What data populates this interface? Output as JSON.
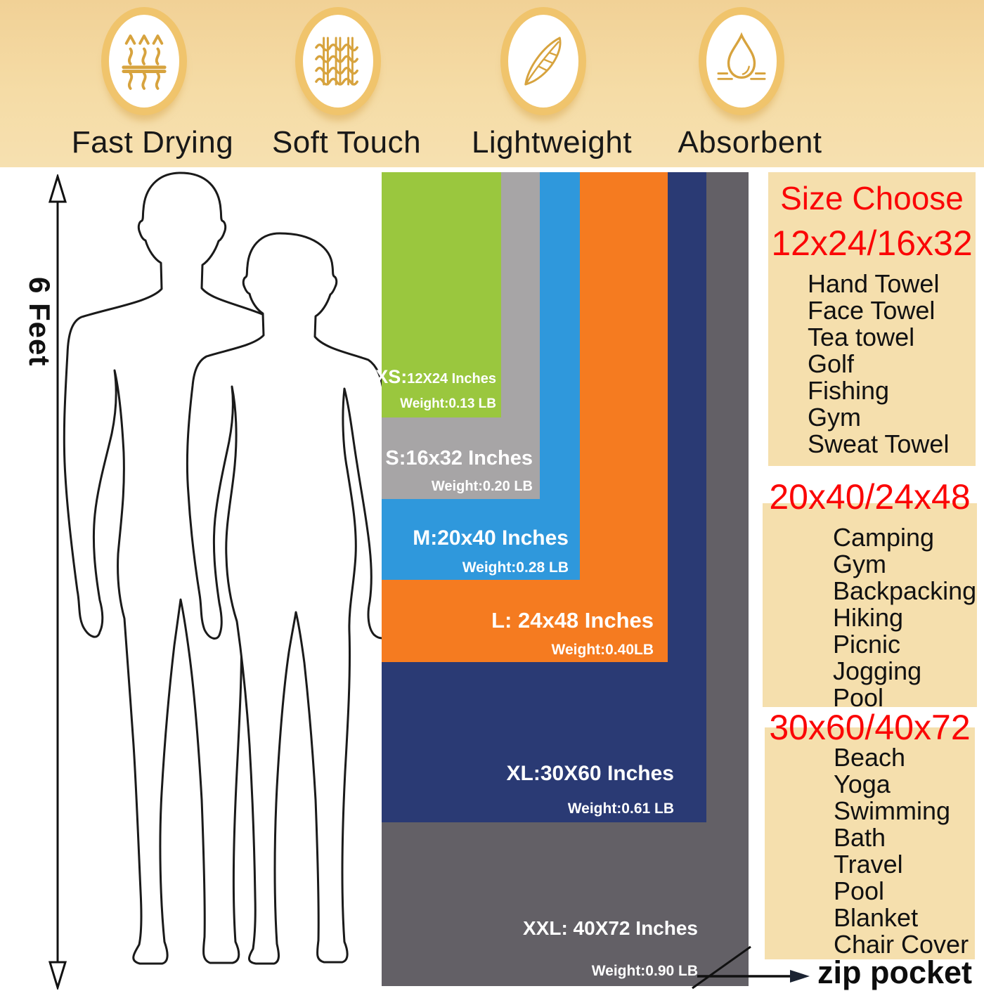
{
  "banner": {
    "features": [
      {
        "label": "Fast Drying",
        "icon": "steam-arrows-icon"
      },
      {
        "label": "Soft Touch",
        "icon": "fabric-weave-icon"
      },
      {
        "label": "Lightweight",
        "icon": "feather-icon"
      },
      {
        "label": "Absorbent",
        "icon": "water-drop-icon"
      }
    ]
  },
  "height_scale": {
    "label": "6 Feet"
  },
  "towels": [
    {
      "label": "XS:",
      "label_small": "12X24 Inches",
      "weight": "Weight:0.13 LB",
      "color": "#9ac73e"
    },
    {
      "label": "S:16x32 Inches",
      "weight": "Weight:0.20 LB",
      "color": "#a7a5a6"
    },
    {
      "label": "M:20x40 Inches",
      "weight": "Weight:0.28 LB",
      "color": "#2f98dc"
    },
    {
      "label": "L: 24x48 Inches",
      "weight": "Weight:0.40LB",
      "color": "#f57b20"
    },
    {
      "label": "XL:30X60 Inches",
      "weight": "Weight:0.61 LB",
      "color": "#2a3a74"
    },
    {
      "label": "XXL: 40X72 Inches",
      "weight": "Weight:0.90 LB",
      "color": "#636066"
    }
  ],
  "size_guide": {
    "title": "Size Choose",
    "sections": [
      {
        "heading": "12x24/16x32",
        "items": [
          "Hand Towel",
          "Face Towel",
          "Tea towel",
          "Golf",
          "Fishing",
          "Gym",
          "Sweat Towel"
        ]
      },
      {
        "heading": "20x40/24x48",
        "items": [
          "Camping",
          "Gym",
          "Backpacking",
          "Hiking",
          "Picnic",
          "Jogging",
          "Pool"
        ]
      },
      {
        "heading": "30x60/40x72",
        "items": [
          "Beach",
          "Yoga",
          "Swimming",
          "Bath",
          "Travel",
          "Pool",
          "Blanket",
          "Chair Cover"
        ]
      }
    ]
  },
  "zip_pocket": {
    "label": "zip pocket"
  },
  "colors": {
    "accent_red": "#fb0606",
    "banner_bg": "#f5dca6",
    "panel_bg": "#f5dfad",
    "icon_gold": "#d7a33e",
    "ring_gold": "#f0c46c"
  }
}
